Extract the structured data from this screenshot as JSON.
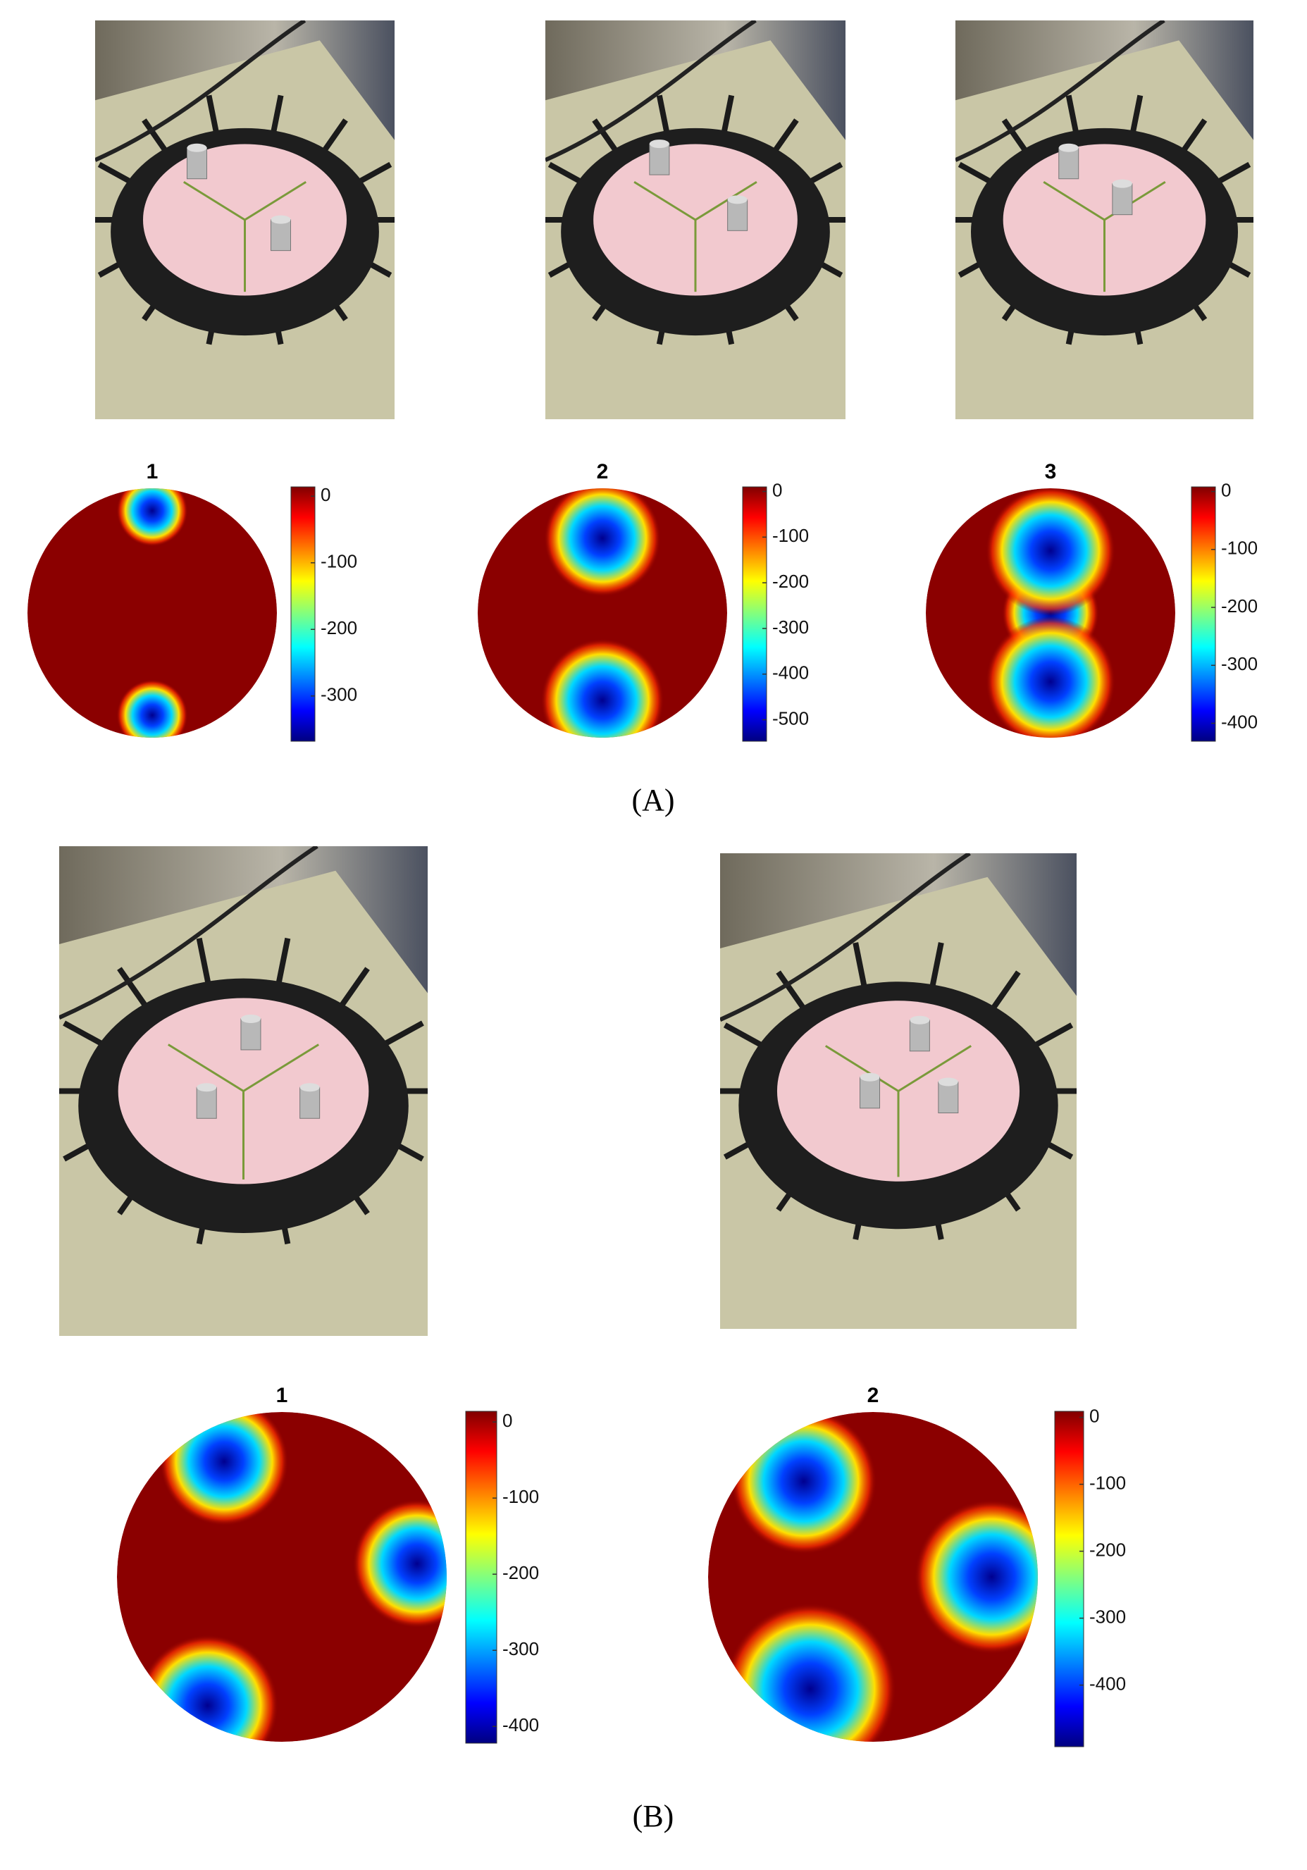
{
  "figure": {
    "panels": [
      {
        "label": "(A)",
        "plots": [
          {
            "title": "1",
            "cbar_lim": [
              -368,
              14
            ],
            "cbar_ticks": [
              0,
              -100,
              -200,
              -300
            ]
          },
          {
            "title": "2",
            "cbar_lim": [
              -547,
              10
            ],
            "cbar_ticks": [
              0,
              -100,
              -200,
              -300,
              -400,
              -500
            ]
          },
          {
            "title": "3",
            "cbar_lim": [
              -431,
              8
            ],
            "cbar_ticks": [
              0,
              -100,
              -200,
              -300,
              -400
            ]
          }
        ]
      },
      {
        "label": "(B)",
        "plots": [
          {
            "title": "1",
            "cbar_lim": [
              -422,
              14
            ],
            "cbar_ticks": [
              0,
              -100,
              -200,
              -300,
              -400
            ]
          },
          {
            "title": "2",
            "cbar_lim": [
              -492,
              9
            ],
            "cbar_ticks": [
              0,
              -100,
              -200,
              -300,
              -400
            ]
          }
        ]
      }
    ]
  }
}
